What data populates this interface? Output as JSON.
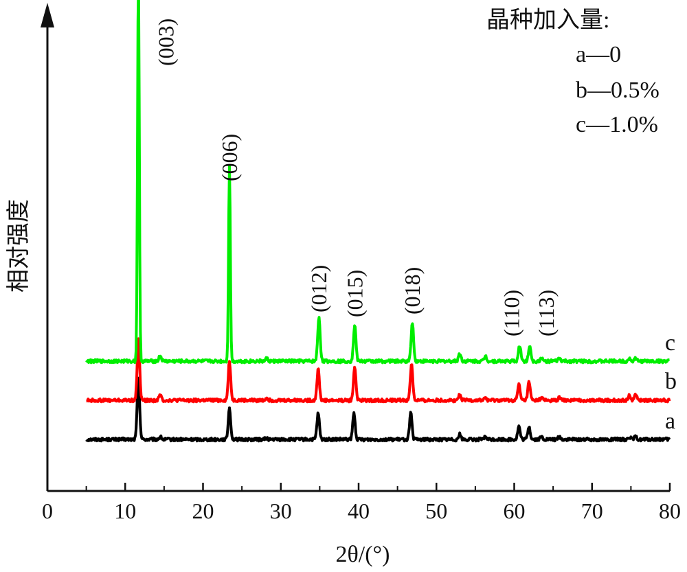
{
  "chart_data": {
    "type": "line",
    "xlabel": "2θ/(°)",
    "ylabel": "相对强度",
    "xlim": [
      0,
      80
    ],
    "x_ticks": [
      "0",
      "10",
      "20",
      "30",
      "40",
      "50",
      "60",
      "70",
      "80"
    ],
    "legend": {
      "title": "晶种加入量:",
      "entries": [
        "a—0",
        "b—0.5%",
        "c—1.0%"
      ],
      "placement": "top-right"
    },
    "peak_labels": [
      {
        "label": "(003)",
        "x": 11.7
      },
      {
        "label": "(006)",
        "x": 23.4
      },
      {
        "label": "(012)",
        "x": 34.9
      },
      {
        "label": "(015)",
        "x": 39.5
      },
      {
        "label": "(018)",
        "x": 46.9
      },
      {
        "label": "(110)",
        "x": 60.7
      },
      {
        "label": "(113)",
        "x": 62.0
      }
    ],
    "x_range": [
      5,
      80
    ],
    "series": [
      {
        "name": "a",
        "color": "#000000",
        "baseline": 0,
        "peaks": [
          {
            "x": 11.7,
            "height": 0.24
          },
          {
            "x": 14.5,
            "height": 0.01
          },
          {
            "x": 23.4,
            "height": 0.12
          },
          {
            "x": 28.2,
            "height": 0.005
          },
          {
            "x": 34.8,
            "height": 0.1
          },
          {
            "x": 39.4,
            "height": 0.1
          },
          {
            "x": 46.7,
            "height": 0.1
          },
          {
            "x": 53.0,
            "height": 0.02
          },
          {
            "x": 56.3,
            "height": 0.01
          },
          {
            "x": 60.6,
            "height": 0.05
          },
          {
            "x": 61.9,
            "height": 0.05
          },
          {
            "x": 63.5,
            "height": 0.01
          },
          {
            "x": 65.8,
            "height": 0.01
          },
          {
            "x": 74.8,
            "height": 0.01
          },
          {
            "x": 75.6,
            "height": 0.01
          }
        ]
      },
      {
        "name": "b",
        "color": "#ff0000",
        "baseline": 0.15,
        "peaks": [
          {
            "x": 11.7,
            "height": 0.24
          },
          {
            "x": 14.5,
            "height": 0.02
          },
          {
            "x": 23.4,
            "height": 0.15
          },
          {
            "x": 28.2,
            "height": 0.01
          },
          {
            "x": 34.8,
            "height": 0.12
          },
          {
            "x": 39.5,
            "height": 0.13
          },
          {
            "x": 46.8,
            "height": 0.14
          },
          {
            "x": 53.0,
            "height": 0.02
          },
          {
            "x": 56.3,
            "height": 0.01
          },
          {
            "x": 60.6,
            "height": 0.06
          },
          {
            "x": 61.9,
            "height": 0.07
          },
          {
            "x": 63.5,
            "height": 0.01
          },
          {
            "x": 65.8,
            "height": 0.01
          },
          {
            "x": 74.8,
            "height": 0.02
          },
          {
            "x": 75.6,
            "height": 0.02
          }
        ]
      },
      {
        "name": "c",
        "color": "#00ee00",
        "baseline": 0.3,
        "peaks": [
          {
            "x": 11.7,
            "height": 1.5
          },
          {
            "x": 14.5,
            "height": 0.02
          },
          {
            "x": 23.4,
            "height": 0.75
          },
          {
            "x": 28.2,
            "height": 0.01
          },
          {
            "x": 34.9,
            "height": 0.17
          },
          {
            "x": 39.5,
            "height": 0.14
          },
          {
            "x": 46.9,
            "height": 0.15
          },
          {
            "x": 53.0,
            "height": 0.03
          },
          {
            "x": 56.3,
            "height": 0.02
          },
          {
            "x": 60.7,
            "height": 0.06
          },
          {
            "x": 62.0,
            "height": 0.06
          },
          {
            "x": 63.5,
            "height": 0.01
          },
          {
            "x": 65.8,
            "height": 0.01
          },
          {
            "x": 74.8,
            "height": 0.01
          },
          {
            "x": 75.6,
            "height": 0.01
          }
        ]
      }
    ]
  }
}
